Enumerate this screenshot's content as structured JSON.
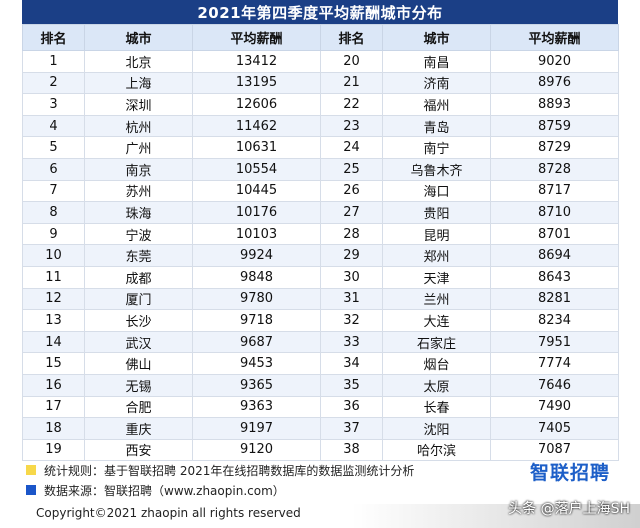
{
  "title": "2021年第四季度平均薪酬城市分布",
  "headers": [
    "排名",
    "城市",
    "平均薪酬",
    "排名",
    "城市",
    "平均薪酬"
  ],
  "rows": [
    [
      "1",
      "北京",
      "13412",
      "20",
      "南昌",
      "9020"
    ],
    [
      "2",
      "上海",
      "13195",
      "21",
      "济南",
      "8976"
    ],
    [
      "3",
      "深圳",
      "12606",
      "22",
      "福州",
      "8893"
    ],
    [
      "4",
      "杭州",
      "11462",
      "23",
      "青岛",
      "8759"
    ],
    [
      "5",
      "广州",
      "10631",
      "24",
      "南宁",
      "8729"
    ],
    [
      "6",
      "南京",
      "10554",
      "25",
      "乌鲁木齐",
      "8728"
    ],
    [
      "7",
      "苏州",
      "10445",
      "26",
      "海口",
      "8717"
    ],
    [
      "8",
      "珠海",
      "10176",
      "27",
      "贵阳",
      "8710"
    ],
    [
      "9",
      "宁波",
      "10103",
      "28",
      "昆明",
      "8701"
    ],
    [
      "10",
      "东莞",
      "9924",
      "29",
      "郑州",
      "8694"
    ],
    [
      "11",
      "成都",
      "9848",
      "30",
      "天津",
      "8643"
    ],
    [
      "12",
      "厦门",
      "9780",
      "31",
      "兰州",
      "8281"
    ],
    [
      "13",
      "长沙",
      "9718",
      "32",
      "大连",
      "8234"
    ],
    [
      "14",
      "武汉",
      "9687",
      "33",
      "石家庄",
      "7951"
    ],
    [
      "15",
      "佛山",
      "9453",
      "34",
      "烟台",
      "7774"
    ],
    [
      "16",
      "无锡",
      "9365",
      "35",
      "太原",
      "7646"
    ],
    [
      "17",
      "合肥",
      "9363",
      "36",
      "长春",
      "7490"
    ],
    [
      "18",
      "重庆",
      "9197",
      "37",
      "沈阳",
      "7405"
    ],
    [
      "19",
      "西安",
      "9120",
      "38",
      "哈尔滨",
      "7087"
    ]
  ],
  "notes": {
    "rule": "统计规则：基于智联招聘  2021年在线招聘数据库的数据监测统计分析",
    "source": "数据来源：智联招聘（www.zhaopin.com）"
  },
  "logo_text": "智联招聘",
  "copyright": "Copyright©2021 zhaopin all rights reserved",
  "watermark": "头条 @落户上海SH",
  "colors": {
    "header_bg": "#1b3f86",
    "table_header_bg": "#dbe7f7",
    "alt_row_bg": "#eef3fb",
    "note_yellow": "#f7d84a",
    "note_blue": "#1b56c9"
  }
}
